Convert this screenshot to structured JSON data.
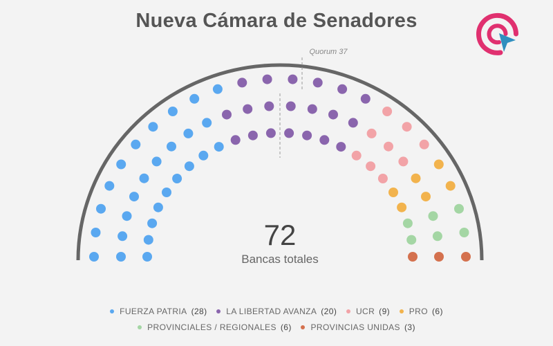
{
  "title": "Nueva Cámara de Senadores",
  "chart_data": {
    "type": "parliament",
    "total": "72",
    "total_label": "Bancas totales",
    "quorum": 37,
    "quorum_label": "Quorum 37",
    "series": [
      {
        "name": "FUERZA PATRIA",
        "count_label": "(28)",
        "value": 28,
        "color": "#5aa8f0"
      },
      {
        "name": "LA LIBERTAD AVANZA",
        "count_label": "(20)",
        "value": 20,
        "color": "#8a65ad"
      },
      {
        "name": "UCR",
        "count_label": "(9)",
        "value": 9,
        "color": "#f2a3a7"
      },
      {
        "name": "PRO",
        "count_label": "(6)",
        "value": 6,
        "color": "#f2b34d"
      },
      {
        "name": "PROVINCIALES / REGIONALES",
        "count_label": "(6)",
        "value": 6,
        "color": "#a4d6a4"
      },
      {
        "name": "PROVINCIAS UNIDAS",
        "count_label": "(3)",
        "value": 3,
        "color": "#d4714e"
      }
    ]
  },
  "logo": {
    "icon": "cursor-target-logo",
    "ring_color": "#e0306f",
    "cursor_color": "#2f8fbf"
  }
}
